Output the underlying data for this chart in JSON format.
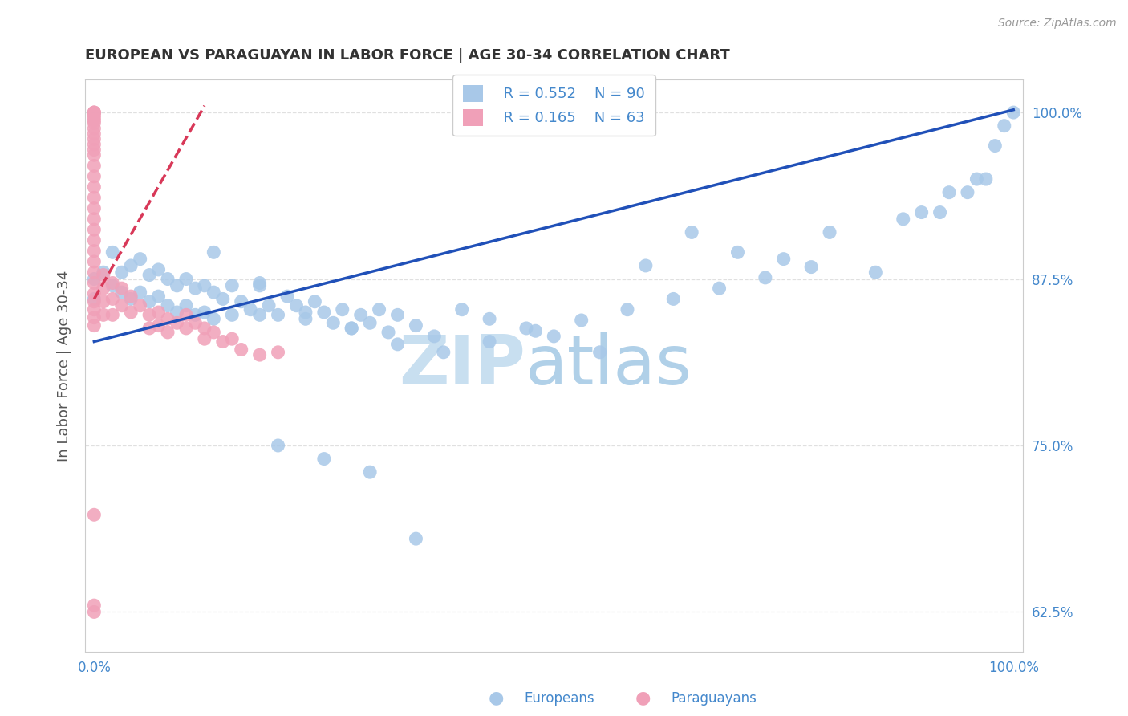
{
  "title": "EUROPEAN VS PARAGUAYAN IN LABOR FORCE | AGE 30-34 CORRELATION CHART",
  "source": "Source: ZipAtlas.com",
  "ylabel": "In Labor Force | Age 30-34",
  "xlim": [
    -0.01,
    1.01
  ],
  "ylim": [
    0.595,
    1.025
  ],
  "yticks": [
    0.625,
    0.75,
    0.875,
    1.0
  ],
  "ytick_labels": [
    "62.5%",
    "75.0%",
    "87.5%",
    "100.0%"
  ],
  "xtick_labels": [
    "0.0%",
    "100.0%"
  ],
  "watermark_zip": "ZIP",
  "watermark_atlas": "atlas",
  "legend_blue_r": "R = 0.552",
  "legend_blue_n": "N = 90",
  "legend_pink_r": "R = 0.165",
  "legend_pink_n": "N = 63",
  "blue_color": "#a8c8e8",
  "pink_color": "#f0a0b8",
  "line_blue": "#2050b8",
  "line_pink": "#d83858",
  "background": "#ffffff",
  "title_color": "#333333",
  "source_color": "#999999",
  "tick_color": "#4488cc",
  "grid_color": "#e0e0e0",
  "blue_line_x0": 0.0,
  "blue_line_x1": 1.0,
  "blue_line_y0": 0.828,
  "blue_line_y1": 1.002,
  "pink_line_x0": 0.0,
  "pink_line_x1": 0.12,
  "pink_line_y0": 0.86,
  "pink_line_y1": 1.005,
  "blue_x": [
    0.0,
    0.0,
    0.01,
    0.02,
    0.02,
    0.03,
    0.03,
    0.04,
    0.04,
    0.05,
    0.05,
    0.06,
    0.06,
    0.07,
    0.07,
    0.08,
    0.08,
    0.09,
    0.09,
    0.1,
    0.1,
    0.11,
    0.11,
    0.12,
    0.12,
    0.13,
    0.13,
    0.14,
    0.15,
    0.15,
    0.16,
    0.17,
    0.18,
    0.18,
    0.19,
    0.2,
    0.21,
    0.22,
    0.23,
    0.24,
    0.25,
    0.26,
    0.27,
    0.28,
    0.29,
    0.3,
    0.31,
    0.32,
    0.33,
    0.35,
    0.37,
    0.4,
    0.43,
    0.47,
    0.5,
    0.55,
    0.6,
    0.65,
    0.7,
    0.75,
    0.8,
    0.85,
    0.88,
    0.9,
    0.92,
    0.93,
    0.95,
    0.96,
    0.97,
    0.98,
    0.99,
    1.0,
    0.2,
    0.25,
    0.3,
    0.35,
    0.13,
    0.18,
    0.23,
    0.28,
    0.33,
    0.38,
    0.43,
    0.48,
    0.53,
    0.58,
    0.63,
    0.68,
    0.73,
    0.78
  ],
  "blue_y": [
    0.86,
    0.875,
    0.88,
    0.895,
    0.87,
    0.88,
    0.865,
    0.885,
    0.86,
    0.89,
    0.865,
    0.878,
    0.858,
    0.882,
    0.862,
    0.875,
    0.855,
    0.87,
    0.85,
    0.875,
    0.855,
    0.868,
    0.848,
    0.87,
    0.85,
    0.865,
    0.845,
    0.86,
    0.87,
    0.848,
    0.858,
    0.852,
    0.872,
    0.848,
    0.855,
    0.848,
    0.862,
    0.855,
    0.845,
    0.858,
    0.85,
    0.842,
    0.852,
    0.838,
    0.848,
    0.842,
    0.852,
    0.835,
    0.848,
    0.84,
    0.832,
    0.852,
    0.845,
    0.838,
    0.832,
    0.82,
    0.885,
    0.91,
    0.895,
    0.89,
    0.91,
    0.88,
    0.92,
    0.925,
    0.925,
    0.94,
    0.94,
    0.95,
    0.95,
    0.975,
    0.99,
    1.0,
    0.75,
    0.74,
    0.73,
    0.68,
    0.895,
    0.87,
    0.85,
    0.838,
    0.826,
    0.82,
    0.828,
    0.836,
    0.844,
    0.852,
    0.86,
    0.868,
    0.876,
    0.884
  ],
  "pink_x": [
    0.0,
    0.0,
    0.0,
    0.0,
    0.0,
    0.0,
    0.0,
    0.0,
    0.0,
    0.0,
    0.0,
    0.0,
    0.0,
    0.0,
    0.0,
    0.0,
    0.0,
    0.0,
    0.0,
    0.0,
    0.0,
    0.0,
    0.0,
    0.0,
    0.0,
    0.0,
    0.0,
    0.0,
    0.0,
    0.0,
    0.01,
    0.01,
    0.01,
    0.01,
    0.02,
    0.02,
    0.02,
    0.03,
    0.03,
    0.04,
    0.04,
    0.05,
    0.06,
    0.06,
    0.07,
    0.07,
    0.08,
    0.08,
    0.09,
    0.1,
    0.1,
    0.11,
    0.12,
    0.12,
    0.13,
    0.14,
    0.15,
    0.16,
    0.18,
    0.2,
    0.0,
    0.0,
    0.0
  ],
  "pink_y": [
    1.0,
    1.0,
    1.0,
    0.998,
    0.996,
    0.994,
    0.992,
    0.988,
    0.984,
    0.98,
    0.976,
    0.972,
    0.968,
    0.96,
    0.952,
    0.944,
    0.936,
    0.928,
    0.92,
    0.912,
    0.904,
    0.896,
    0.888,
    0.88,
    0.872,
    0.864,
    0.858,
    0.852,
    0.846,
    0.84,
    0.878,
    0.868,
    0.858,
    0.848,
    0.872,
    0.86,
    0.848,
    0.868,
    0.855,
    0.862,
    0.85,
    0.855,
    0.848,
    0.838,
    0.85,
    0.84,
    0.845,
    0.835,
    0.842,
    0.848,
    0.838,
    0.842,
    0.838,
    0.83,
    0.835,
    0.828,
    0.83,
    0.822,
    0.818,
    0.82,
    0.698,
    0.625,
    0.63
  ]
}
